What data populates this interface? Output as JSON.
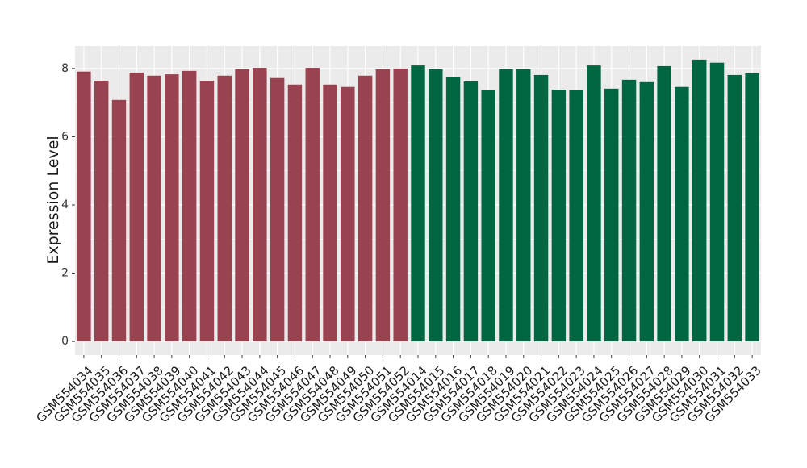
{
  "chart_data": {
    "type": "bar",
    "y_label": "Expression Level",
    "categories": [
      "GSM554034",
      "GSM554035",
      "GSM554036",
      "GSM554037",
      "GSM554038",
      "GSM554039",
      "GSM554040",
      "GSM554041",
      "GSM554042",
      "GSM554043",
      "GSM554044",
      "GSM554045",
      "GSM554046",
      "GSM554047",
      "GSM554048",
      "GSM554049",
      "GSM554050",
      "GSM554051",
      "GSM554052",
      "GSM554014",
      "GSM554015",
      "GSM554016",
      "GSM554017",
      "GSM554018",
      "GSM554019",
      "GSM554020",
      "GSM554021",
      "GSM554022",
      "GSM554023",
      "GSM554024",
      "GSM554025",
      "GSM554026",
      "GSM554027",
      "GSM554028",
      "GSM554029",
      "GSM554030",
      "GSM554031",
      "GSM554032",
      "GSM554033"
    ],
    "values": [
      7.91,
      7.64,
      7.08,
      7.88,
      7.79,
      7.83,
      7.93,
      7.64,
      7.79,
      7.98,
      8.02,
      7.72,
      7.53,
      8.02,
      7.53,
      7.46,
      7.79,
      7.98,
      8.0,
      8.09,
      7.98,
      7.74,
      7.62,
      7.36,
      7.98,
      7.98,
      7.81,
      7.38,
      7.36,
      8.09,
      7.41,
      7.67,
      7.6,
      8.07,
      7.46,
      8.26,
      8.17,
      7.81,
      7.86
    ],
    "colors": [
      "#9a4350",
      "#9a4350",
      "#9a4350",
      "#9a4350",
      "#9a4350",
      "#9a4350",
      "#9a4350",
      "#9a4350",
      "#9a4350",
      "#9a4350",
      "#9a4350",
      "#9a4350",
      "#9a4350",
      "#9a4350",
      "#9a4350",
      "#9a4350",
      "#9a4350",
      "#9a4350",
      "#9a4350",
      "#006641",
      "#006641",
      "#006641",
      "#006641",
      "#006641",
      "#006641",
      "#006641",
      "#006641",
      "#006641",
      "#006641",
      "#006641",
      "#006641",
      "#006641",
      "#006641",
      "#006641",
      "#006641",
      "#006641",
      "#006641",
      "#006641",
      "#006641"
    ],
    "ylim": [
      -0.4,
      8.66
    ],
    "yticks": [
      0,
      2,
      4,
      6,
      8
    ],
    "grid": true
  }
}
